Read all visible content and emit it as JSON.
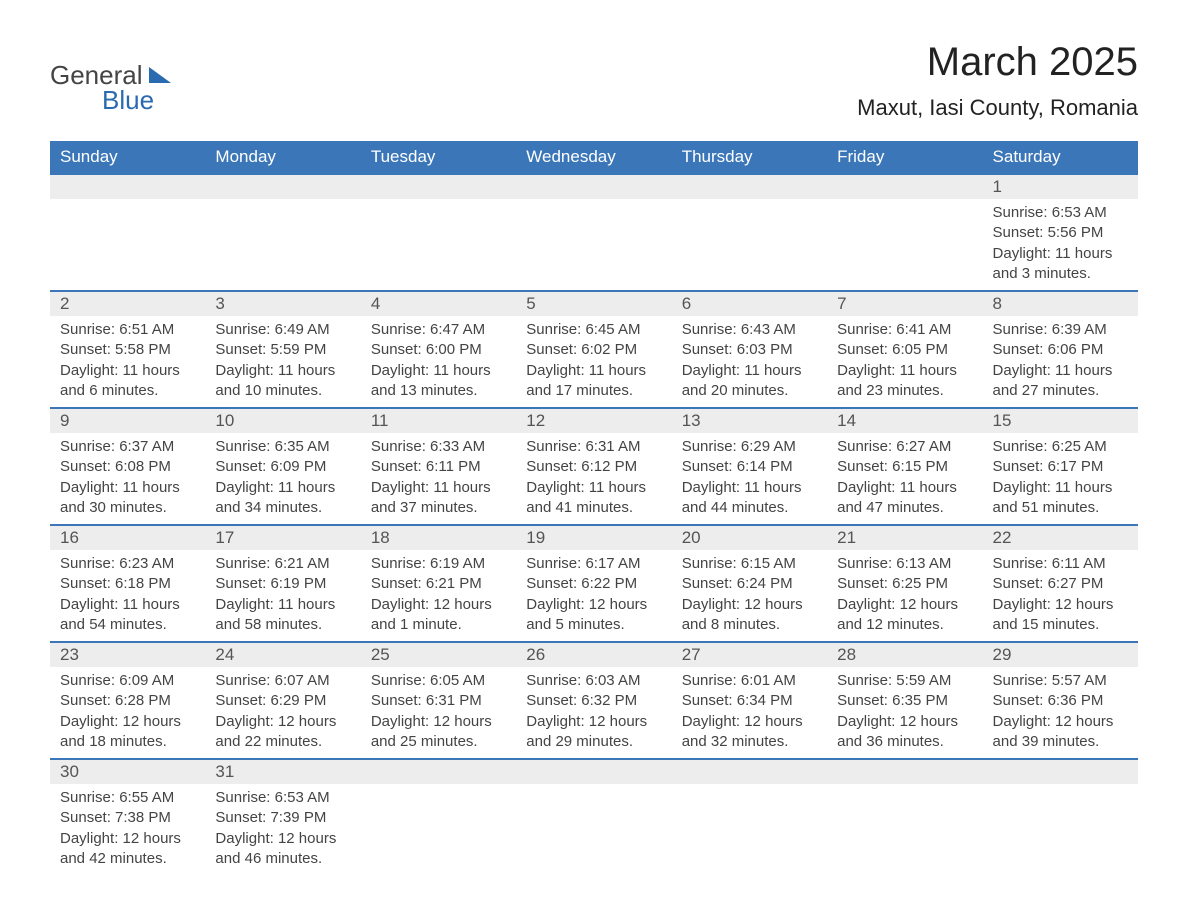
{
  "logo": {
    "general": "General",
    "blue": "Blue"
  },
  "header": {
    "month_title": "March 2025",
    "location": "Maxut, Iasi County, Romania"
  },
  "calendar": {
    "header_bg": "#3a76b8",
    "header_fg": "#ffffff",
    "daynum_bg": "#ededed",
    "daynum_fg": "#555555",
    "text_color": "#444444",
    "border_color": "#3a76b8",
    "columns": [
      "Sunday",
      "Monday",
      "Tuesday",
      "Wednesday",
      "Thursday",
      "Friday",
      "Saturday"
    ],
    "weeks": [
      [
        null,
        null,
        null,
        null,
        null,
        null,
        {
          "d": "1",
          "sr": "Sunrise: 6:53 AM",
          "ss": "Sunset: 5:56 PM",
          "dl1": "Daylight: 11 hours",
          "dl2": "and 3 minutes."
        }
      ],
      [
        {
          "d": "2",
          "sr": "Sunrise: 6:51 AM",
          "ss": "Sunset: 5:58 PM",
          "dl1": "Daylight: 11 hours",
          "dl2": "and 6 minutes."
        },
        {
          "d": "3",
          "sr": "Sunrise: 6:49 AM",
          "ss": "Sunset: 5:59 PM",
          "dl1": "Daylight: 11 hours",
          "dl2": "and 10 minutes."
        },
        {
          "d": "4",
          "sr": "Sunrise: 6:47 AM",
          "ss": "Sunset: 6:00 PM",
          "dl1": "Daylight: 11 hours",
          "dl2": "and 13 minutes."
        },
        {
          "d": "5",
          "sr": "Sunrise: 6:45 AM",
          "ss": "Sunset: 6:02 PM",
          "dl1": "Daylight: 11 hours",
          "dl2": "and 17 minutes."
        },
        {
          "d": "6",
          "sr": "Sunrise: 6:43 AM",
          "ss": "Sunset: 6:03 PM",
          "dl1": "Daylight: 11 hours",
          "dl2": "and 20 minutes."
        },
        {
          "d": "7",
          "sr": "Sunrise: 6:41 AM",
          "ss": "Sunset: 6:05 PM",
          "dl1": "Daylight: 11 hours",
          "dl2": "and 23 minutes."
        },
        {
          "d": "8",
          "sr": "Sunrise: 6:39 AM",
          "ss": "Sunset: 6:06 PM",
          "dl1": "Daylight: 11 hours",
          "dl2": "and 27 minutes."
        }
      ],
      [
        {
          "d": "9",
          "sr": "Sunrise: 6:37 AM",
          "ss": "Sunset: 6:08 PM",
          "dl1": "Daylight: 11 hours",
          "dl2": "and 30 minutes."
        },
        {
          "d": "10",
          "sr": "Sunrise: 6:35 AM",
          "ss": "Sunset: 6:09 PM",
          "dl1": "Daylight: 11 hours",
          "dl2": "and 34 minutes."
        },
        {
          "d": "11",
          "sr": "Sunrise: 6:33 AM",
          "ss": "Sunset: 6:11 PM",
          "dl1": "Daylight: 11 hours",
          "dl2": "and 37 minutes."
        },
        {
          "d": "12",
          "sr": "Sunrise: 6:31 AM",
          "ss": "Sunset: 6:12 PM",
          "dl1": "Daylight: 11 hours",
          "dl2": "and 41 minutes."
        },
        {
          "d": "13",
          "sr": "Sunrise: 6:29 AM",
          "ss": "Sunset: 6:14 PM",
          "dl1": "Daylight: 11 hours",
          "dl2": "and 44 minutes."
        },
        {
          "d": "14",
          "sr": "Sunrise: 6:27 AM",
          "ss": "Sunset: 6:15 PM",
          "dl1": "Daylight: 11 hours",
          "dl2": "and 47 minutes."
        },
        {
          "d": "15",
          "sr": "Sunrise: 6:25 AM",
          "ss": "Sunset: 6:17 PM",
          "dl1": "Daylight: 11 hours",
          "dl2": "and 51 minutes."
        }
      ],
      [
        {
          "d": "16",
          "sr": "Sunrise: 6:23 AM",
          "ss": "Sunset: 6:18 PM",
          "dl1": "Daylight: 11 hours",
          "dl2": "and 54 minutes."
        },
        {
          "d": "17",
          "sr": "Sunrise: 6:21 AM",
          "ss": "Sunset: 6:19 PM",
          "dl1": "Daylight: 11 hours",
          "dl2": "and 58 minutes."
        },
        {
          "d": "18",
          "sr": "Sunrise: 6:19 AM",
          "ss": "Sunset: 6:21 PM",
          "dl1": "Daylight: 12 hours",
          "dl2": "and 1 minute."
        },
        {
          "d": "19",
          "sr": "Sunrise: 6:17 AM",
          "ss": "Sunset: 6:22 PM",
          "dl1": "Daylight: 12 hours",
          "dl2": "and 5 minutes."
        },
        {
          "d": "20",
          "sr": "Sunrise: 6:15 AM",
          "ss": "Sunset: 6:24 PM",
          "dl1": "Daylight: 12 hours",
          "dl2": "and 8 minutes."
        },
        {
          "d": "21",
          "sr": "Sunrise: 6:13 AM",
          "ss": "Sunset: 6:25 PM",
          "dl1": "Daylight: 12 hours",
          "dl2": "and 12 minutes."
        },
        {
          "d": "22",
          "sr": "Sunrise: 6:11 AM",
          "ss": "Sunset: 6:27 PM",
          "dl1": "Daylight: 12 hours",
          "dl2": "and 15 minutes."
        }
      ],
      [
        {
          "d": "23",
          "sr": "Sunrise: 6:09 AM",
          "ss": "Sunset: 6:28 PM",
          "dl1": "Daylight: 12 hours",
          "dl2": "and 18 minutes."
        },
        {
          "d": "24",
          "sr": "Sunrise: 6:07 AM",
          "ss": "Sunset: 6:29 PM",
          "dl1": "Daylight: 12 hours",
          "dl2": "and 22 minutes."
        },
        {
          "d": "25",
          "sr": "Sunrise: 6:05 AM",
          "ss": "Sunset: 6:31 PM",
          "dl1": "Daylight: 12 hours",
          "dl2": "and 25 minutes."
        },
        {
          "d": "26",
          "sr": "Sunrise: 6:03 AM",
          "ss": "Sunset: 6:32 PM",
          "dl1": "Daylight: 12 hours",
          "dl2": "and 29 minutes."
        },
        {
          "d": "27",
          "sr": "Sunrise: 6:01 AM",
          "ss": "Sunset: 6:34 PM",
          "dl1": "Daylight: 12 hours",
          "dl2": "and 32 minutes."
        },
        {
          "d": "28",
          "sr": "Sunrise: 5:59 AM",
          "ss": "Sunset: 6:35 PM",
          "dl1": "Daylight: 12 hours",
          "dl2": "and 36 minutes."
        },
        {
          "d": "29",
          "sr": "Sunrise: 5:57 AM",
          "ss": "Sunset: 6:36 PM",
          "dl1": "Daylight: 12 hours",
          "dl2": "and 39 minutes."
        }
      ],
      [
        {
          "d": "30",
          "sr": "Sunrise: 6:55 AM",
          "ss": "Sunset: 7:38 PM",
          "dl1": "Daylight: 12 hours",
          "dl2": "and 42 minutes."
        },
        {
          "d": "31",
          "sr": "Sunrise: 6:53 AM",
          "ss": "Sunset: 7:39 PM",
          "dl1": "Daylight: 12 hours",
          "dl2": "and 46 minutes."
        },
        null,
        null,
        null,
        null,
        null
      ]
    ]
  }
}
